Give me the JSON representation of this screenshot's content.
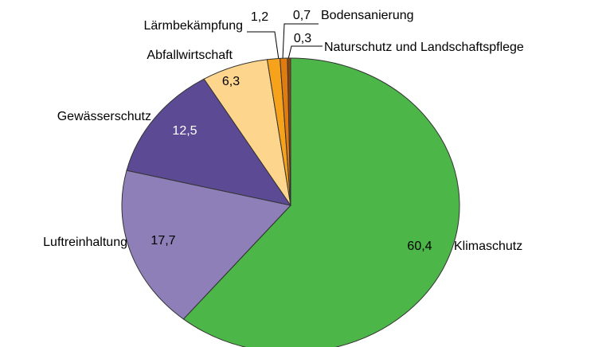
{
  "chart_data": {
    "type": "pie",
    "categories": [
      "Klimaschutz",
      "Luftreinhaltung",
      "Gewässerschutz",
      "Abfallwirtschaft",
      "Lärmbekämpfung",
      "Bodensanierung",
      "Naturschutz und Landschaftspflege"
    ],
    "values": [
      60.4,
      17.7,
      12.5,
      6.3,
      1.2,
      0.7,
      0.3
    ],
    "value_labels": [
      "60,4",
      "17,7",
      "12,5",
      "6,3",
      "1,2",
      "0,7",
      "0,3"
    ],
    "colors": [
      "#4cb648",
      "#8e7fb8",
      "#5c4a94",
      "#fdd58c",
      "#f7a21b",
      "#e07b10",
      "#8b4513"
    ]
  }
}
